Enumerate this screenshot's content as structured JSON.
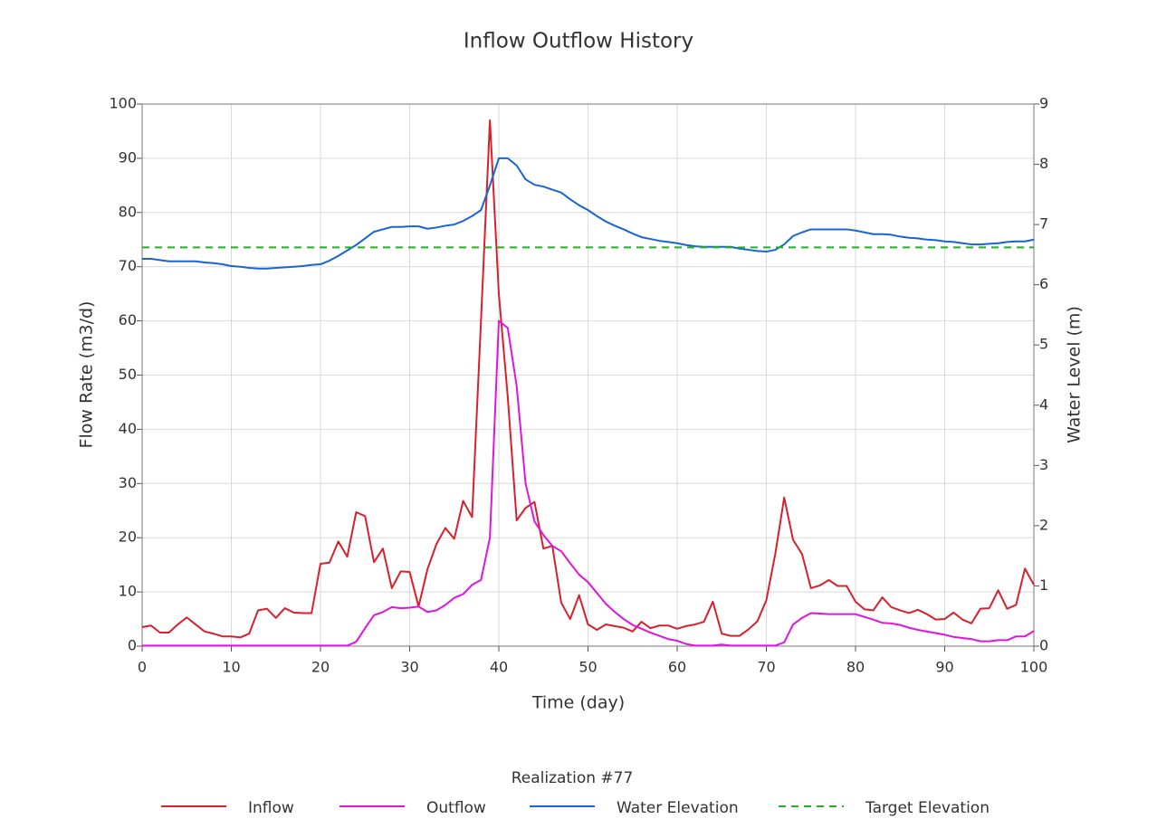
{
  "chart_data": {
    "type": "line",
    "title": "Inflow Outflow History",
    "x_label": "Time (day)",
    "y_label": "Flow Rate (m3/d)",
    "y2_label": "Water Level (m)",
    "legend_title": "Realization #77",
    "legend_position": "bottom",
    "grid": true,
    "xlim": [
      0,
      100
    ],
    "xticks": [
      0,
      10,
      20,
      30,
      40,
      50,
      60,
      70,
      80,
      90,
      100
    ],
    "ylim": [
      0,
      100
    ],
    "yticks": [
      0,
      10,
      20,
      30,
      40,
      50,
      60,
      70,
      80,
      90,
      100
    ],
    "y2lim": [
      0,
      9
    ],
    "y2ticks": [
      0,
      1,
      2,
      3,
      4,
      5,
      6,
      7,
      8,
      9
    ],
    "x": [
      0,
      1,
      2,
      3,
      4,
      5,
      6,
      7,
      8,
      9,
      10,
      11,
      12,
      13,
      14,
      15,
      16,
      17,
      18,
      19,
      20,
      21,
      22,
      23,
      24,
      25,
      26,
      27,
      28,
      29,
      30,
      31,
      32,
      33,
      34,
      35,
      36,
      37,
      38,
      39,
      40,
      41,
      42,
      43,
      44,
      45,
      46,
      47,
      48,
      49,
      50,
      51,
      52,
      53,
      54,
      55,
      56,
      57,
      58,
      59,
      60,
      61,
      62,
      63,
      64,
      65,
      66,
      67,
      68,
      69,
      70,
      71,
      72,
      73,
      74,
      75,
      76,
      77,
      78,
      79,
      80,
      81,
      82,
      83,
      84,
      85,
      86,
      87,
      88,
      89,
      90,
      91,
      92,
      93,
      94,
      95,
      96,
      97,
      98,
      99,
      100
    ],
    "series": [
      {
        "name": "Inflow",
        "color": "#d8202c",
        "values": [
          3.5,
          3.8,
          2.5,
          2.5,
          4,
          5.3,
          4,
          2.7,
          2.3,
          1.8,
          1.8,
          1.6,
          2.3,
          6.6,
          6.9,
          5.2,
          7,
          6.2,
          6.1,
          6.1,
          15.2,
          15.4,
          19.3,
          16.5,
          24.7,
          24,
          15.5,
          18,
          10.7,
          13.8,
          13.7,
          7.3,
          14.2,
          18.8,
          21.8,
          19.8,
          26.8,
          23.8,
          60,
          97,
          65,
          46,
          23.2,
          25.5,
          26.6,
          18,
          18.5,
          8,
          5,
          9.4,
          4,
          3,
          4,
          3.7,
          3.4,
          2.7,
          4.5,
          3.3,
          3.8,
          3.8,
          3.2,
          3.7,
          4,
          4.5,
          8.2,
          2.3,
          1.9,
          1.9,
          3.1,
          4.6,
          8.5,
          17,
          27.4,
          19.6,
          17,
          10.7,
          11.2,
          12.2,
          11.1,
          11.1,
          8.2,
          6.8,
          6.6,
          9,
          7.2,
          6.6,
          6.1,
          6.7,
          5.9,
          4.9,
          5,
          6.2,
          4.9,
          4.2,
          6.9,
          7,
          10.3,
          6.9,
          7.6,
          14.3,
          11.3
        ]
      },
      {
        "name": "Outflow",
        "color": "#e014e0",
        "values": [
          0.1,
          0.1,
          0.1,
          0.1,
          0.1,
          0.1,
          0.1,
          0.1,
          0.1,
          0.1,
          0.1,
          0.1,
          0.1,
          0.1,
          0.1,
          0.1,
          0.1,
          0.1,
          0.1,
          0.1,
          0.1,
          0.1,
          0.1,
          0.1,
          0.8,
          3.3,
          5.7,
          6.3,
          7.2,
          7,
          7.1,
          7.3,
          6.3,
          6.6,
          7.6,
          8.9,
          9.6,
          11.3,
          12.2,
          20,
          60,
          58.7,
          48,
          30,
          23,
          20.5,
          18.5,
          17.5,
          15.3,
          13.2,
          11.8,
          9.8,
          7.8,
          6.3,
          5,
          3.9,
          3.2,
          2.5,
          1.9,
          1.3,
          1,
          0.4,
          0.1,
          0.1,
          0.1,
          0.3,
          0.1,
          0.1,
          0.1,
          0.1,
          0.1,
          0.1,
          0.7,
          4,
          5.2,
          6.1,
          6,
          5.9,
          5.9,
          5.9,
          5.9,
          5.4,
          4.9,
          4.3,
          4.2,
          3.9,
          3.4,
          3,
          2.7,
          2.4,
          2.1,
          1.7,
          1.5,
          1.3,
          0.9,
          0.9,
          1.1,
          1.1,
          1.8,
          1.8,
          2.8
        ]
      },
      {
        "name": "Water Elevation",
        "color": "#1664d8",
        "axis": "y2",
        "values": [
          6.43,
          6.43,
          6.41,
          6.39,
          6.39,
          6.39,
          6.39,
          6.37,
          6.36,
          6.34,
          6.31,
          6.3,
          6.28,
          6.27,
          6.27,
          6.28,
          6.29,
          6.3,
          6.31,
          6.33,
          6.34,
          6.4,
          6.48,
          6.57,
          6.66,
          6.77,
          6.88,
          6.92,
          6.96,
          6.96,
          6.97,
          6.97,
          6.93,
          6.95,
          6.98,
          7,
          7.06,
          7.14,
          7.24,
          7.65,
          8.1,
          8.1,
          7.98,
          7.75,
          7.66,
          7.63,
          7.58,
          7.53,
          7.42,
          7.32,
          7.24,
          7.14,
          7.05,
          6.98,
          6.92,
          6.85,
          6.79,
          6.76,
          6.73,
          6.71,
          6.69,
          6.66,
          6.64,
          6.63,
          6.63,
          6.63,
          6.63,
          6.6,
          6.58,
          6.56,
          6.55,
          6.58,
          6.67,
          6.81,
          6.87,
          6.92,
          6.92,
          6.92,
          6.92,
          6.92,
          6.9,
          6.87,
          6.84,
          6.84,
          6.83,
          6.8,
          6.78,
          6.77,
          6.75,
          6.74,
          6.72,
          6.71,
          6.69,
          6.67,
          6.67,
          6.68,
          6.69,
          6.71,
          6.72,
          6.72,
          6.75
        ]
      },
      {
        "name": "Target Elevation",
        "color": "#22b022",
        "axis": "y2",
        "dashed": true,
        "x": [
          0,
          100
        ],
        "values": [
          6.62,
          6.62
        ]
      }
    ]
  }
}
